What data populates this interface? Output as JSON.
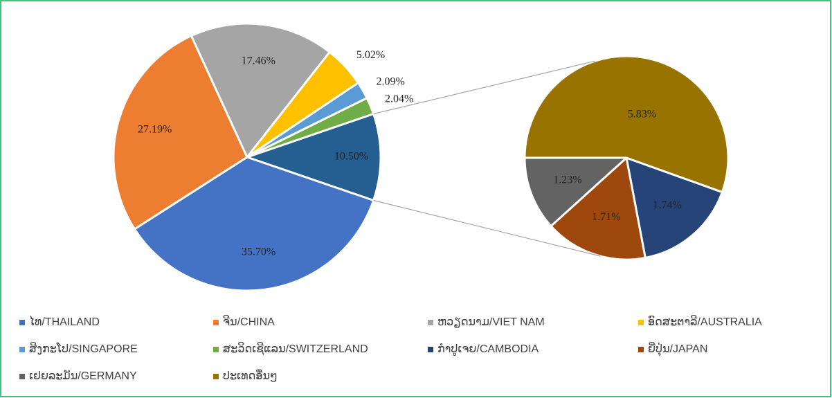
{
  "chart_data": {
    "type": "pie_of_pie",
    "categories": [
      "ໄທ/THAILAND",
      "ຈີນ/CHINA",
      "ຫວຽດນາມ/VIET NAM",
      "ອົດສະຕາລີ/AUSTRALIA",
      "ສິງກະໂປ/SINGAPORE",
      "ສະວິດເຊີແລນ/SWITZERLAND",
      "ກຳປູເຈຍ/CAMBODIA",
      "ຍີ່ປຸ່ນ/JAPAN",
      "ເຢຍລະມັນ/GERMANY",
      "ປະເທດອື່ນໆ"
    ],
    "values": [
      35.7,
      27.19,
      17.46,
      5.02,
      2.09,
      2.04,
      1.74,
      1.71,
      1.23,
      5.83
    ],
    "value_labels": [
      "35.70%",
      "27.19%",
      "17.46%",
      "5.02%",
      "2.09%",
      "2.04%",
      "1.74%",
      "1.71%",
      "1.23%",
      "5.83%"
    ],
    "colors": [
      "#4472C4",
      "#ED7D31",
      "#A5A5A5",
      "#FFC000",
      "#5B9BD5",
      "#70AD47",
      "#264478",
      "#9E480E",
      "#636363",
      "#997300"
    ],
    "second_pie_count": 4,
    "combined": {
      "value": 10.5,
      "value_label": "10.50%",
      "color": "#255E91"
    },
    "legend": "bottom"
  }
}
